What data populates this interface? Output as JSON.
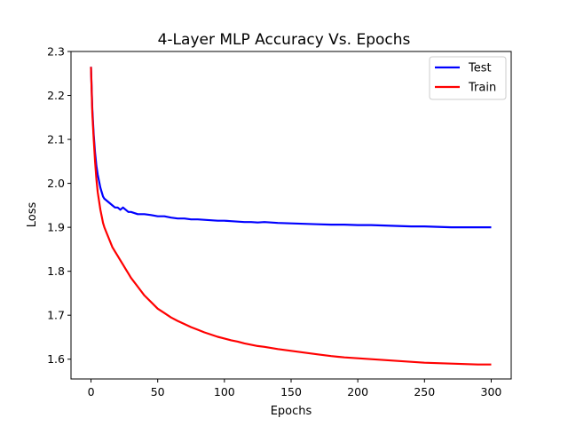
{
  "chart_data": {
    "type": "line",
    "title": "4-Layer MLP Accuracy Vs. Epochs",
    "xlabel": "Epochs",
    "ylabel": "Loss",
    "xlim": [
      -15,
      315
    ],
    "ylim": [
      1.555,
      2.3
    ],
    "x_ticks": [
      0,
      50,
      100,
      150,
      200,
      250,
      300
    ],
    "y_ticks": [
      1.6,
      1.7,
      1.8,
      1.9,
      2.0,
      2.1,
      2.2,
      2.3
    ],
    "grid": false,
    "legend_position": "top-right",
    "series": [
      {
        "name": "Test",
        "color": "#0000ff",
        "x": [
          0,
          1,
          2,
          3,
          4,
          5,
          6,
          7,
          8,
          9,
          10,
          12,
          14,
          16,
          18,
          20,
          22,
          24,
          26,
          28,
          30,
          35,
          40,
          45,
          50,
          55,
          60,
          65,
          70,
          75,
          80,
          85,
          90,
          95,
          100,
          105,
          110,
          115,
          120,
          125,
          130,
          140,
          150,
          160,
          170,
          180,
          190,
          200,
          210,
          220,
          230,
          240,
          250,
          260,
          270,
          280,
          290,
          300
        ],
        "values": [
          2.265,
          2.17,
          2.11,
          2.07,
          2.04,
          2.02,
          2.005,
          1.99,
          1.98,
          1.97,
          1.965,
          1.96,
          1.955,
          1.95,
          1.945,
          1.945,
          1.94,
          1.945,
          1.94,
          1.935,
          1.935,
          1.93,
          1.93,
          1.928,
          1.925,
          1.925,
          1.922,
          1.92,
          1.92,
          1.918,
          1.918,
          1.917,
          1.916,
          1.915,
          1.915,
          1.914,
          1.913,
          1.912,
          1.912,
          1.911,
          1.912,
          1.91,
          1.909,
          1.908,
          1.907,
          1.906,
          1.906,
          1.905,
          1.905,
          1.904,
          1.903,
          1.902,
          1.902,
          1.901,
          1.9,
          1.9,
          1.9,
          1.9
        ]
      },
      {
        "name": "Train",
        "color": "#ff0000",
        "x": [
          0,
          1,
          2,
          3,
          4,
          5,
          6,
          7,
          8,
          9,
          10,
          12,
          14,
          16,
          18,
          20,
          22,
          24,
          26,
          28,
          30,
          35,
          40,
          45,
          50,
          55,
          60,
          65,
          70,
          75,
          80,
          85,
          90,
          95,
          100,
          105,
          110,
          115,
          120,
          125,
          130,
          140,
          150,
          160,
          170,
          180,
          190,
          200,
          210,
          220,
          230,
          240,
          250,
          260,
          270,
          280,
          290,
          300
        ],
        "values": [
          2.265,
          2.16,
          2.1,
          2.05,
          2.01,
          1.98,
          1.96,
          1.94,
          1.925,
          1.91,
          1.9,
          1.885,
          1.87,
          1.855,
          1.845,
          1.835,
          1.825,
          1.815,
          1.805,
          1.795,
          1.785,
          1.765,
          1.745,
          1.73,
          1.715,
          1.705,
          1.695,
          1.687,
          1.68,
          1.673,
          1.667,
          1.661,
          1.656,
          1.651,
          1.647,
          1.643,
          1.64,
          1.636,
          1.633,
          1.63,
          1.628,
          1.623,
          1.619,
          1.615,
          1.611,
          1.607,
          1.604,
          1.602,
          1.6,
          1.598,
          1.596,
          1.594,
          1.592,
          1.591,
          1.59,
          1.589,
          1.588,
          1.588
        ]
      }
    ]
  }
}
